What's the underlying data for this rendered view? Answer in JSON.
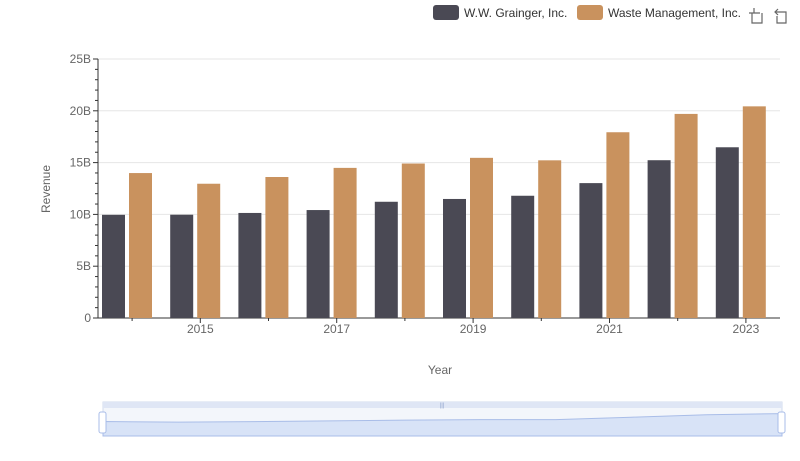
{
  "chart_data": {
    "type": "bar",
    "title": "",
    "xlabel": "Year",
    "ylabel": "Revenue",
    "categories": [
      "2014",
      "2015",
      "2016",
      "2017",
      "2018",
      "2019",
      "2020",
      "2021",
      "2022",
      "2023"
    ],
    "x_tick_labels": [
      "2015",
      "2017",
      "2019",
      "2021",
      "2023"
    ],
    "y_tick_labels": [
      "0",
      "5B",
      "10B",
      "15B",
      "20B",
      "25B"
    ],
    "ylim": [
      0,
      25000000000
    ],
    "grid": true,
    "legend_position": "top-right",
    "series": [
      {
        "name": "W.W. Grainger, Inc.",
        "color": "#4a4954",
        "values": [
          9960000000,
          9970000000,
          10140000000,
          10420000000,
          11220000000,
          11490000000,
          11800000000,
          13020000000,
          15230000000,
          16480000000
        ]
      },
      {
        "name": "Waste Management, Inc.",
        "color": "#c9925e",
        "values": [
          13990000000,
          12960000000,
          13610000000,
          14490000000,
          14910000000,
          15460000000,
          15220000000,
          17930000000,
          19700000000,
          20430000000
        ]
      }
    ]
  },
  "toolbox": {
    "zoom_icon": "zoom-icon",
    "restore_icon": "restore-icon"
  }
}
